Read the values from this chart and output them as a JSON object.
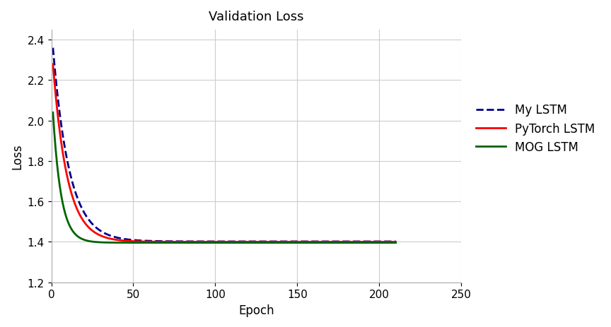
{
  "title": "Validation Loss",
  "xlabel": "Epoch",
  "ylabel": "Loss",
  "xlim": [
    0,
    250
  ],
  "ylim": [
    1.2,
    2.45
  ],
  "yticks": [
    1.2,
    1.4,
    1.6,
    1.8,
    2.0,
    2.2,
    2.4
  ],
  "xticks": [
    0,
    50,
    100,
    150,
    200,
    250
  ],
  "background_color": "#ffffff",
  "grid_color": "#cccccc",
  "lines": [
    {
      "label": "My LSTM",
      "color": "#00008B",
      "linestyle": "--",
      "linewidth": 2.0,
      "start_val": 2.36,
      "end_val": 1.402,
      "decay": 0.1
    },
    {
      "label": "PyTorch LSTM",
      "color": "#FF0000",
      "linestyle": "-",
      "linewidth": 2.0,
      "start_val": 2.28,
      "end_val": 1.4,
      "decay": 0.115
    },
    {
      "label": "MOG LSTM",
      "color": "#006400",
      "linestyle": "-",
      "linewidth": 2.0,
      "start_val": 2.04,
      "end_val": 1.396,
      "decay": 0.2
    }
  ],
  "legend_loc": "center right",
  "title_fontsize": 13,
  "label_fontsize": 12,
  "tick_fontsize": 11
}
